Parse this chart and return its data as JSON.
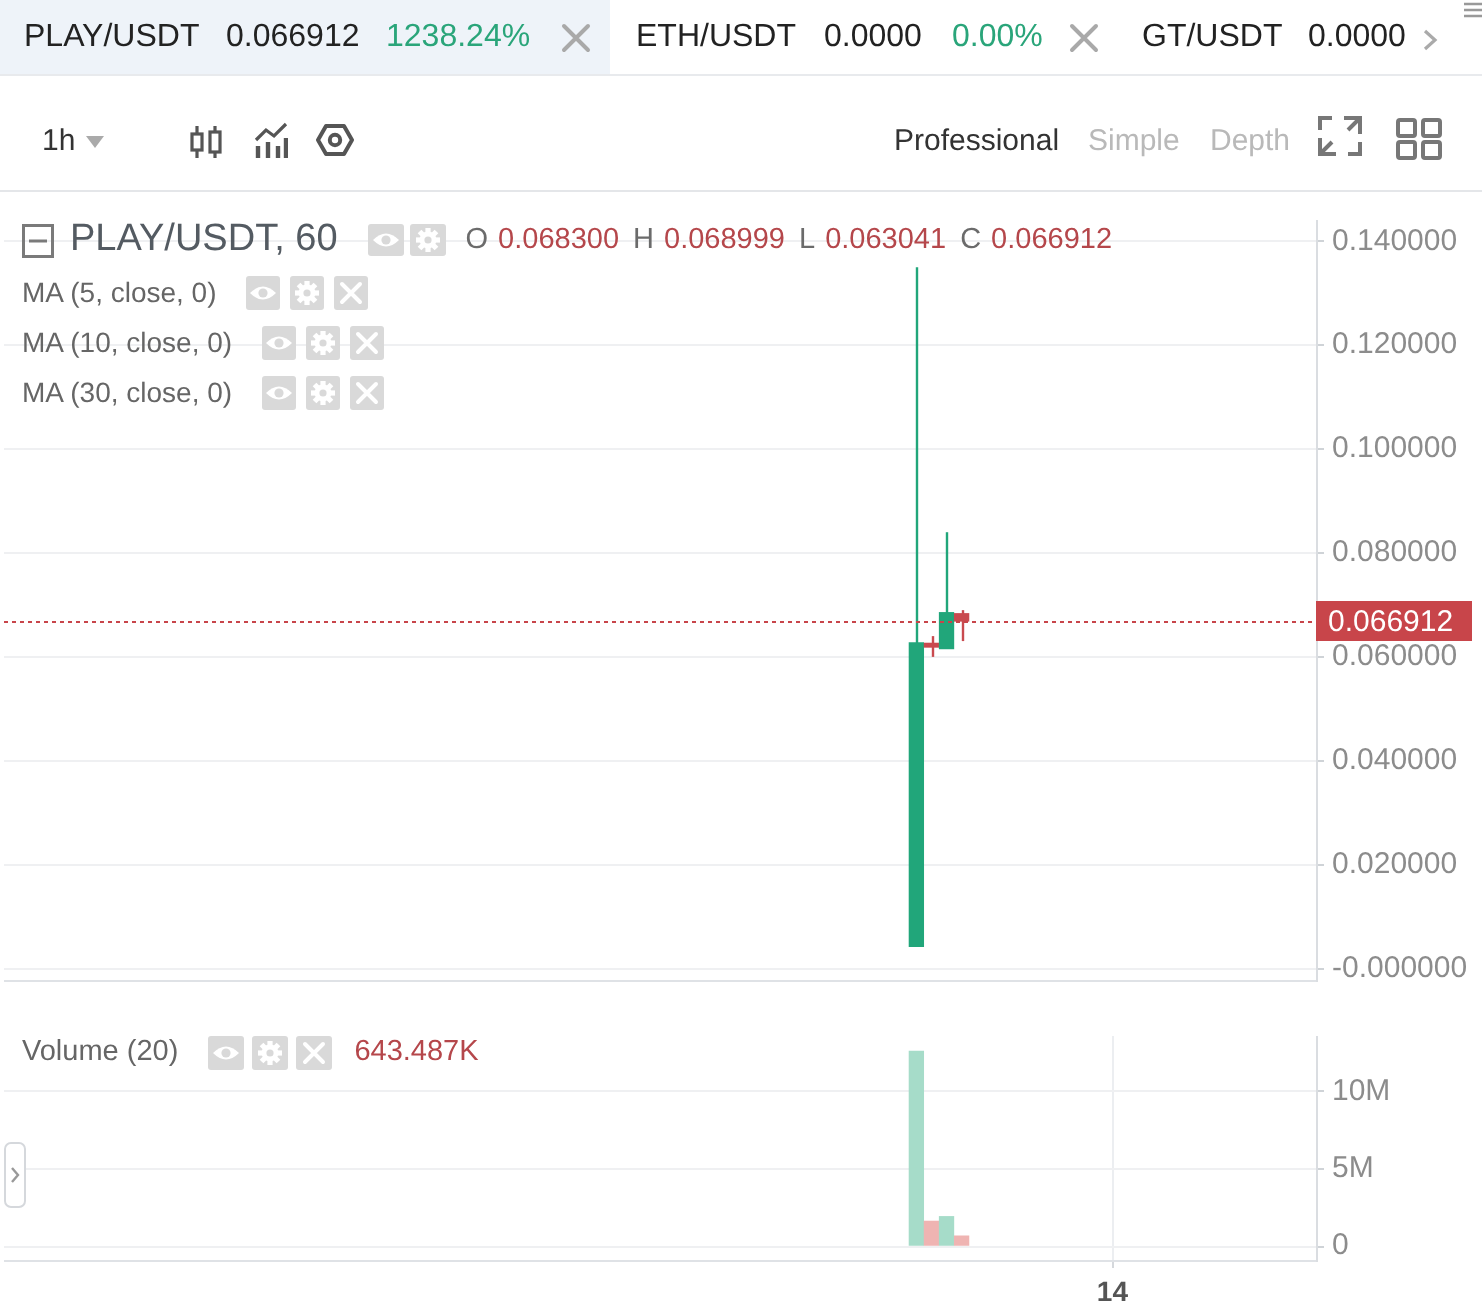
{
  "chart_data": [
    {
      "type": "other",
      "annotations": [
        "PLAY/USDT",
        "0.066912",
        "1238.24%",
        "ETH/USDT",
        "0.0000",
        "0.00%",
        "GT/USDT",
        "0.0000",
        "1h",
        "Professional",
        "Simple",
        "Depth"
      ]
    },
    {
      "type": "candlestick",
      "title": "PLAY/USDT, 60",
      "annotations": [
        "O",
        "0.068300",
        "H",
        "0.068999",
        "L",
        "0.063041",
        "C",
        "0.066912",
        "MA (5, close, 0)",
        "MA (10, close, 0)",
        "MA (30, close, 0)"
      ],
      "categories": [
        null,
        null,
        null,
        null,
        null,
        null,
        null,
        null,
        null,
        null,
        null,
        null,
        null,
        null,
        null,
        null,
        null,
        null,
        null,
        null,
        null,
        null,
        null,
        null,
        null,
        null,
        null,
        null,
        null,
        null,
        null,
        null,
        null,
        null,
        null,
        null,
        null,
        null,
        null,
        null,
        null,
        null,
        null,
        null,
        null,
        null,
        null,
        null,
        null,
        null,
        null,
        null,
        null,
        null,
        null,
        null,
        null,
        null,
        null,
        null,
        null,
        null,
        null,
        null,
        null,
        null,
        null,
        null,
        null,
        null,
        null,
        null,
        null,
        null,
        null,
        null,
        null,
        null,
        null,
        null,
        null,
        null,
        null,
        null,
        null,
        null,
        null
      ],
      "ohlc": [
        null,
        null,
        null,
        null,
        null,
        null,
        null,
        null,
        null,
        null,
        null,
        null,
        null,
        null,
        null,
        null,
        null,
        null,
        null,
        null,
        null,
        null,
        null,
        null,
        null,
        null,
        null,
        null,
        null,
        null,
        null,
        null,
        null,
        null,
        null,
        null,
        null,
        null,
        null,
        null,
        null,
        null,
        null,
        null,
        null,
        null,
        null,
        null,
        null,
        null,
        null,
        null,
        null,
        null,
        null,
        null,
        null,
        null,
        null,
        null,
        [
          0.0043,
          0.135,
          0.0043,
          0.0627
        ],
        [
          0.0626,
          0.064,
          0.06,
          0.0619
        ],
        [
          0.0616,
          0.084,
          0.0616,
          0.0685
        ],
        [
          0.0683,
          0.068999,
          0.063041,
          0.066912
        ],
        null,
        null,
        null,
        null,
        null,
        null,
        null,
        null,
        null,
        null,
        null,
        null,
        null,
        null,
        null,
        null,
        null,
        null,
        null,
        null,
        null,
        null,
        null
      ],
      "colors": [
        null,
        null,
        null,
        null,
        null,
        null,
        null,
        null,
        null,
        null,
        null,
        null,
        null,
        null,
        null,
        null,
        null,
        null,
        null,
        null,
        null,
        null,
        null,
        null,
        null,
        null,
        null,
        null,
        null,
        null,
        null,
        null,
        null,
        null,
        null,
        null,
        null,
        null,
        null,
        null,
        null,
        null,
        null,
        null,
        null,
        null,
        null,
        null,
        null,
        null,
        null,
        null,
        null,
        null,
        null,
        null,
        null,
        null,
        null,
        null,
        "#21a67a",
        "#c94a4f",
        "#21a67a",
        "#c94a4f",
        null,
        null,
        null,
        null,
        null,
        null,
        null,
        null,
        null,
        null,
        null,
        null,
        null,
        null,
        null,
        null,
        null,
        null,
        null,
        null,
        null,
        null,
        null
      ],
      "ylim": [
        -0.0022,
        0.1441
      ],
      "yticks": [
        {
          "value": 0,
          "label": "-0.000000"
        },
        {
          "value": 0.02,
          "label": "0.020000"
        },
        {
          "value": 0.04,
          "label": "0.040000"
        },
        {
          "value": 0.06,
          "label": "0.060000"
        },
        {
          "value": 0.08,
          "label": "0.080000"
        },
        {
          "value": 0.1,
          "label": "0.100000"
        },
        {
          "value": 0.12,
          "label": "0.120000"
        },
        {
          "value": 0.14,
          "label": "0.140000"
        }
      ],
      "grid": true,
      "tick_labels": "y",
      "ref_lines": [
        {
          "axis": "y",
          "value": 0.066912,
          "label": "0.066912",
          "color": "#c8454a",
          "line_style": "dotted"
        }
      ]
    },
    {
      "type": "bar",
      "title": "Volume (20)",
      "annotations": [
        "643.487K"
      ],
      "categories": [
        null,
        null,
        null,
        null,
        null,
        null,
        null,
        null,
        null,
        null,
        null,
        null,
        null,
        null,
        null,
        null,
        null,
        null,
        null,
        null,
        null,
        null,
        null,
        null,
        null,
        null,
        null,
        null,
        null,
        null,
        null,
        null,
        null,
        null,
        null,
        null,
        null,
        null,
        null,
        null,
        null,
        null,
        null,
        null,
        null,
        null,
        null,
        null,
        null,
        null,
        null,
        null,
        null,
        null,
        null,
        null,
        null,
        null,
        null,
        null,
        null,
        null,
        null,
        null,
        null,
        null,
        null,
        null,
        null,
        null,
        null,
        null,
        null,
        "14",
        null,
        null,
        null,
        null,
        null,
        null,
        null,
        null,
        null,
        null,
        null,
        null,
        null
      ],
      "values": [
        null,
        null,
        null,
        null,
        null,
        null,
        null,
        null,
        null,
        null,
        null,
        null,
        null,
        null,
        null,
        null,
        null,
        null,
        null,
        null,
        null,
        null,
        null,
        null,
        null,
        null,
        null,
        null,
        null,
        null,
        null,
        null,
        null,
        null,
        null,
        null,
        null,
        null,
        null,
        null,
        null,
        null,
        null,
        null,
        null,
        null,
        null,
        null,
        null,
        null,
        null,
        null,
        null,
        null,
        null,
        null,
        null,
        null,
        null,
        null,
        12600000,
        1600000,
        1900000,
        643487,
        null,
        null,
        null,
        null,
        null,
        null,
        null,
        null,
        null,
        null,
        null,
        null,
        null,
        null,
        null,
        null,
        null,
        null,
        null,
        null,
        null,
        null,
        null
      ],
      "colors": [
        null,
        null,
        null,
        null,
        null,
        null,
        null,
        null,
        null,
        null,
        null,
        null,
        null,
        null,
        null,
        null,
        null,
        null,
        null,
        null,
        null,
        null,
        null,
        null,
        null,
        null,
        null,
        null,
        null,
        null,
        null,
        null,
        null,
        null,
        null,
        null,
        null,
        null,
        null,
        null,
        null,
        null,
        null,
        null,
        null,
        null,
        null,
        null,
        null,
        null,
        null,
        null,
        null,
        null,
        null,
        null,
        null,
        null,
        null,
        null,
        "#a6dcc9",
        "#efb4b2",
        "#a6dcc9",
        "#efb4b2",
        null,
        null,
        null,
        null,
        null,
        null,
        null,
        null,
        null,
        null,
        null,
        null,
        null,
        null,
        null,
        null,
        null,
        null,
        null,
        null,
        null,
        null,
        null
      ],
      "ylim": [
        -900000,
        13600000
      ],
      "yticks": [
        0,
        {
          "value": 5000000,
          "label": "5M"
        },
        {
          "value": 10000000,
          "label": "10M"
        }
      ],
      "grid": true
    }
  ]
}
